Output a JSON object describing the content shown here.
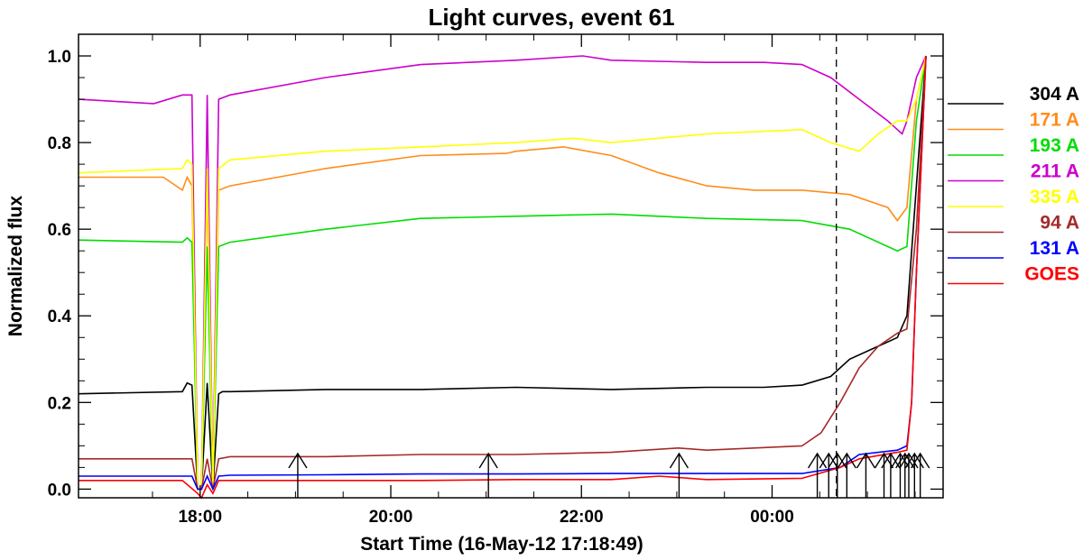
{
  "chart_data": {
    "type": "line",
    "title": "Light curves, event 61",
    "xlabel": "Start Time (16-May-12 17:18:49)",
    "ylabel": "Normalized flux",
    "xlim": [
      -0.59,
      8.48
    ],
    "ylim": [
      -0.02,
      1.05
    ],
    "x_unit": "hours after 17:18:49",
    "x_ticks": [
      {
        "value": 0.686,
        "label": "18:00"
      },
      {
        "value": 2.686,
        "label": "20:00"
      },
      {
        "value": 4.686,
        "label": "22:00"
      },
      {
        "value": 6.686,
        "label": "00:00"
      }
    ],
    "y_ticks": [
      {
        "value": 0.0,
        "label": "0.0"
      },
      {
        "value": 0.2,
        "label": "0.2"
      },
      {
        "value": 0.4,
        "label": "0.4"
      },
      {
        "value": 0.6,
        "label": "0.6"
      },
      {
        "value": 0.8,
        "label": "0.8"
      },
      {
        "value": 1.0,
        "label": "1.0"
      }
    ],
    "vline_x": 7.36,
    "arrows_x": [
      1.71,
      3.71,
      5.71,
      7.16,
      7.28,
      7.37,
      7.47,
      7.67,
      7.86,
      7.93,
      8.03,
      8.08,
      8.12,
      8.18,
      8.24
    ],
    "legend_position": "right",
    "series": [
      {
        "name": "304 A",
        "color": "#000000",
        "x": [
          -0.59,
          0.5,
          0.55,
          0.6,
          0.66,
          0.7,
          0.76,
          0.82,
          0.88,
          0.92,
          1,
          2,
          3,
          4,
          5,
          6,
          6.6,
          7,
          7.3,
          7.5,
          7.8,
          8.0,
          8.1,
          8.2,
          8.3
        ],
        "y": [
          0.22,
          0.225,
          0.245,
          0.24,
          0.0,
          0.0,
          0.245,
          0.0,
          0.22,
          0.225,
          0.225,
          0.23,
          0.23,
          0.235,
          0.23,
          0.235,
          0.235,
          0.24,
          0.26,
          0.3,
          0.33,
          0.35,
          0.4,
          0.7,
          1.0
        ]
      },
      {
        "name": "171 A",
        "color": "#ff8c1a",
        "x": [
          -0.59,
          0.3,
          0.5,
          0.55,
          0.6,
          0.66,
          0.7,
          0.76,
          0.82,
          0.88,
          1,
          2,
          3,
          3.9,
          4,
          4.5,
          5,
          5.5,
          6,
          6.5,
          7,
          7.5,
          7.9,
          8.0,
          8.1,
          8.2,
          8.3
        ],
        "y": [
          0.72,
          0.72,
          0.69,
          0.72,
          0.7,
          0.0,
          0.0,
          0.7,
          0.0,
          0.69,
          0.7,
          0.74,
          0.77,
          0.775,
          0.78,
          0.79,
          0.77,
          0.73,
          0.7,
          0.69,
          0.69,
          0.68,
          0.65,
          0.62,
          0.65,
          0.9,
          1.0
        ]
      },
      {
        "name": "193 A",
        "color": "#00dd00",
        "x": [
          -0.59,
          0.5,
          0.55,
          0.6,
          0.66,
          0.7,
          0.76,
          0.82,
          0.88,
          1,
          2,
          3,
          4,
          5,
          6,
          7,
          7.5,
          8.0,
          8.1,
          8.2,
          8.3
        ],
        "y": [
          0.575,
          0.57,
          0.58,
          0.57,
          0.0,
          0.0,
          0.56,
          0.0,
          0.56,
          0.57,
          0.6,
          0.625,
          0.63,
          0.635,
          0.625,
          0.62,
          0.6,
          0.55,
          0.56,
          0.85,
          1.0
        ]
      },
      {
        "name": "211 A",
        "color": "#cc00cc",
        "x": [
          -0.59,
          0.2,
          0.5,
          0.55,
          0.6,
          0.66,
          0.7,
          0.76,
          0.82,
          0.88,
          1,
          2,
          3,
          4,
          4.7,
          5,
          6,
          6.6,
          7,
          7.3,
          7.6,
          7.9,
          8.0,
          8.05,
          8.1,
          8.2,
          8.3
        ],
        "y": [
          0.9,
          0.89,
          0.91,
          0.91,
          0.91,
          0.0,
          0.0,
          0.91,
          0.0,
          0.9,
          0.91,
          0.95,
          0.98,
          0.99,
          1.0,
          0.99,
          0.985,
          0.985,
          0.98,
          0.95,
          0.9,
          0.85,
          0.83,
          0.82,
          0.85,
          0.95,
          1.0
        ]
      },
      {
        "name": "335 A",
        "color": "#ffff00",
        "x": [
          -0.59,
          0.5,
          0.55,
          0.6,
          0.66,
          0.7,
          0.76,
          0.82,
          0.88,
          1,
          2,
          3,
          4,
          4.6,
          5,
          6,
          7,
          7.3,
          7.6,
          7.8,
          8.0,
          8.1,
          8.2,
          8.3
        ],
        "y": [
          0.73,
          0.74,
          0.76,
          0.75,
          0.0,
          0.0,
          0.74,
          0.0,
          0.74,
          0.76,
          0.78,
          0.79,
          0.8,
          0.81,
          0.8,
          0.82,
          0.83,
          0.8,
          0.78,
          0.82,
          0.85,
          0.85,
          0.9,
          1.0
        ]
      },
      {
        "name": "94 A",
        "color": "#a52a2a",
        "x": [
          -0.59,
          0.5,
          0.6,
          0.66,
          0.7,
          0.76,
          0.82,
          0.88,
          1,
          2,
          3,
          4,
          5,
          5.7,
          6,
          7,
          7.2,
          7.4,
          7.6,
          7.8,
          8.0,
          8.1,
          8.2,
          8.3
        ],
        "y": [
          0.07,
          0.07,
          0.07,
          0.0,
          0.0,
          0.07,
          0.0,
          0.07,
          0.075,
          0.075,
          0.08,
          0.08,
          0.085,
          0.095,
          0.09,
          0.1,
          0.13,
          0.2,
          0.28,
          0.33,
          0.36,
          0.37,
          0.6,
          1.0
        ]
      },
      {
        "name": "131 A",
        "color": "#0000ff",
        "x": [
          -0.59,
          0.5,
          0.6,
          0.66,
          0.7,
          0.76,
          0.82,
          0.88,
          1,
          2,
          3,
          4,
          5,
          6,
          7,
          7.4,
          7.6,
          8.0,
          8.1,
          8.15,
          8.2,
          8.3
        ],
        "y": [
          0.03,
          0.03,
          0.03,
          0.0,
          0.0,
          0.03,
          0.0,
          0.03,
          0.032,
          0.033,
          0.035,
          0.035,
          0.036,
          0.036,
          0.036,
          0.05,
          0.08,
          0.09,
          0.1,
          0.2,
          0.5,
          1.0
        ]
      },
      {
        "name": "GOES",
        "color": "#ff0000",
        "x": [
          -0.59,
          0.5,
          0.66,
          0.7,
          0.76,
          0.82,
          0.88,
          1,
          2,
          3,
          4,
          5,
          5.5,
          6,
          7,
          7.4,
          7.6,
          8.0,
          8.1,
          8.15,
          8.2,
          8.3
        ],
        "y": [
          0.02,
          0.02,
          -0.01,
          -0.02,
          0.01,
          -0.01,
          0.02,
          0.02,
          0.02,
          0.02,
          0.022,
          0.022,
          0.03,
          0.022,
          0.025,
          0.05,
          0.07,
          0.085,
          0.09,
          0.2,
          0.5,
          1.0
        ]
      }
    ]
  }
}
